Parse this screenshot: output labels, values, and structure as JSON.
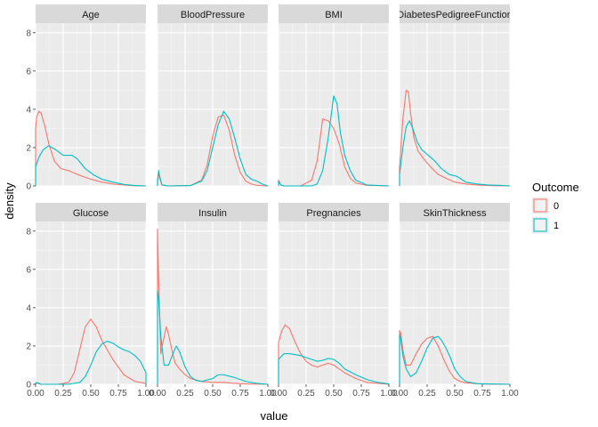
{
  "chart_data": {
    "type": "line",
    "subtype": "density-facets",
    "title": "",
    "xlabel": "value",
    "ylabel": "density",
    "xlim": [
      0,
      1
    ],
    "ylim": [
      0,
      8.5
    ],
    "x_ticks": [
      0,
      0.25,
      0.5,
      0.75,
      1
    ],
    "x_tick_labels": [
      "0.00",
      "0.25",
      "0.50",
      "0.75",
      "1.00"
    ],
    "y_ticks": [
      0,
      2,
      4,
      6,
      8
    ],
    "y_tick_labels": [
      "0",
      "2",
      "4",
      "6",
      "8"
    ],
    "grid": true,
    "legend": {
      "title": "Outcome",
      "placement": "right",
      "entries": [
        {
          "label": "0",
          "color": "#F8766D"
        },
        {
          "label": "1",
          "color": "#00BFC4"
        }
      ]
    },
    "facets": [
      {
        "name": "Age",
        "series": [
          {
            "name": "0",
            "x": [
              0,
              0.01,
              0.03,
              0.05,
              0.08,
              0.12,
              0.17,
              0.23,
              0.3,
              0.4,
              0.5,
              0.6,
              0.7,
              0.8,
              0.9,
              1
            ],
            "y": [
              3.0,
              3.6,
              3.9,
              3.8,
              3.2,
              2.2,
              1.3,
              0.9,
              0.8,
              0.55,
              0.35,
              0.2,
              0.1,
              0.05,
              0.01,
              0
            ]
          },
          {
            "name": "1",
            "x": [
              0,
              0.03,
              0.07,
              0.12,
              0.18,
              0.25,
              0.33,
              0.38,
              0.45,
              0.52,
              0.6,
              0.7,
              0.8,
              0.9,
              1
            ],
            "y": [
              1.0,
              1.5,
              1.9,
              2.1,
              1.9,
              1.6,
              1.6,
              1.4,
              0.9,
              0.6,
              0.35,
              0.2,
              0.08,
              0.02,
              0
            ]
          }
        ]
      },
      {
        "name": "BloodPressure",
        "series": [
          {
            "name": "0",
            "x": [
              0,
              0.01,
              0.02,
              0.04,
              0.1,
              0.3,
              0.4,
              0.45,
              0.5,
              0.55,
              0.6,
              0.65,
              0.7,
              0.75,
              0.8,
              0.85,
              0.9,
              1
            ],
            "y": [
              0.2,
              0.7,
              0.4,
              0.05,
              0,
              0.02,
              0.3,
              1.1,
              2.6,
              3.6,
              3.7,
              2.9,
              1.6,
              0.7,
              0.25,
              0.1,
              0.03,
              0
            ]
          },
          {
            "name": "1",
            "x": [
              0,
              0.01,
              0.02,
              0.04,
              0.1,
              0.3,
              0.4,
              0.45,
              0.5,
              0.55,
              0.6,
              0.65,
              0.7,
              0.75,
              0.8,
              0.85,
              0.9,
              0.95,
              1
            ],
            "y": [
              0.3,
              0.8,
              0.5,
              0.05,
              0,
              0.02,
              0.25,
              0.8,
              2.0,
              3.2,
              3.9,
              3.5,
              2.5,
              1.4,
              0.6,
              0.35,
              0.25,
              0.1,
              0
            ]
          }
        ]
      },
      {
        "name": "BMI",
        "series": [
          {
            "name": "0",
            "x": [
              0,
              0.01,
              0.02,
              0.05,
              0.2,
              0.3,
              0.35,
              0.4,
              0.45,
              0.5,
              0.55,
              0.6,
              0.65,
              0.7,
              0.8,
              1
            ],
            "y": [
              0.3,
              0.2,
              0.05,
              0,
              0,
              0.3,
              1.3,
              3.5,
              3.4,
              3.0,
              2.2,
              1.0,
              0.4,
              0.15,
              0.03,
              0
            ]
          },
          {
            "name": "1",
            "x": [
              0,
              0.01,
              0.02,
              0.05,
              0.3,
              0.35,
              0.4,
              0.45,
              0.5,
              0.53,
              0.56,
              0.6,
              0.65,
              0.7,
              0.8,
              1
            ],
            "y": [
              0.25,
              0.15,
              0.05,
              0,
              0,
              0.1,
              0.8,
              2.5,
              4.7,
              4.3,
              2.8,
              1.6,
              0.8,
              0.3,
              0.05,
              0
            ]
          }
        ]
      },
      {
        "name": "DiabetesPedigreeFunction",
        "series": [
          {
            "name": "0",
            "x": [
              0,
              0.03,
              0.06,
              0.08,
              0.1,
              0.13,
              0.17,
              0.22,
              0.28,
              0.35,
              0.42,
              0.5,
              0.6,
              0.7,
              0.8,
              1
            ],
            "y": [
              1.0,
              3.5,
              5.0,
              4.9,
              3.8,
              2.5,
              1.8,
              1.4,
              1.0,
              0.6,
              0.4,
              0.2,
              0.1,
              0.05,
              0.02,
              0
            ]
          },
          {
            "name": "1",
            "x": [
              0,
              0.03,
              0.06,
              0.09,
              0.12,
              0.16,
              0.2,
              0.26,
              0.32,
              0.38,
              0.45,
              0.52,
              0.6,
              0.7,
              0.8,
              0.9,
              1
            ],
            "y": [
              0.6,
              2.0,
              3.1,
              3.4,
              3.0,
              2.3,
              1.9,
              1.6,
              1.3,
              0.9,
              0.6,
              0.5,
              0.2,
              0.1,
              0.05,
              0.03,
              0
            ]
          }
        ]
      },
      {
        "name": "Glucose",
        "series": [
          {
            "name": "0",
            "x": [
              0,
              0.02,
              0.05,
              0.2,
              0.3,
              0.35,
              0.4,
              0.45,
              0.5,
              0.55,
              0.6,
              0.65,
              0.7,
              0.75,
              0.8,
              0.9,
              1
            ],
            "y": [
              0.05,
              0.05,
              0,
              0,
              0.1,
              0.6,
              1.8,
              3.0,
              3.4,
              3.0,
              2.3,
              1.8,
              1.3,
              0.9,
              0.5,
              0.15,
              0.05
            ]
          },
          {
            "name": "1",
            "x": [
              0,
              0.02,
              0.05,
              0.3,
              0.4,
              0.45,
              0.5,
              0.55,
              0.6,
              0.65,
              0.7,
              0.75,
              0.8,
              0.85,
              0.9,
              0.95,
              1
            ],
            "y": [
              0.08,
              0.08,
              0,
              0,
              0.1,
              0.4,
              1.0,
              1.7,
              2.1,
              2.25,
              2.15,
              1.95,
              1.8,
              1.7,
              1.5,
              1.2,
              0.6
            ]
          }
        ]
      },
      {
        "name": "Insulin",
        "series": [
          {
            "name": "0",
            "x": [
              0,
              0.01,
              0.03,
              0.05,
              0.08,
              0.1,
              0.13,
              0.16,
              0.2,
              0.25,
              0.3,
              0.4,
              0.5,
              0.6,
              0.7,
              0.8,
              1
            ],
            "y": [
              8.1,
              5.5,
              1.6,
              2.2,
              3.0,
              2.6,
              1.8,
              1.1,
              0.8,
              0.5,
              0.3,
              0.15,
              0.1,
              0.1,
              0.05,
              0.02,
              0
            ]
          },
          {
            "name": "1",
            "x": [
              0,
              0.01,
              0.03,
              0.06,
              0.1,
              0.14,
              0.17,
              0.2,
              0.25,
              0.3,
              0.35,
              0.4,
              0.5,
              0.55,
              0.6,
              0.7,
              0.8,
              0.9,
              1
            ],
            "y": [
              4.9,
              4.5,
              2.5,
              1.0,
              1.0,
              1.6,
              2.0,
              1.7,
              0.9,
              0.4,
              0.2,
              0.15,
              0.3,
              0.5,
              0.5,
              0.35,
              0.15,
              0.05,
              0
            ]
          }
        ]
      },
      {
        "name": "Pregnancies",
        "series": [
          {
            "name": "0",
            "x": [
              0,
              0.03,
              0.06,
              0.1,
              0.15,
              0.2,
              0.25,
              0.3,
              0.35,
              0.4,
              0.45,
              0.5,
              0.55,
              0.6,
              0.7,
              0.8,
              0.9,
              1
            ],
            "y": [
              2.2,
              2.8,
              3.1,
              2.9,
              2.2,
              1.6,
              1.2,
              1.0,
              0.9,
              1.0,
              1.1,
              1.0,
              0.8,
              0.6,
              0.3,
              0.1,
              0.05,
              0
            ]
          },
          {
            "name": "1",
            "x": [
              0,
              0.05,
              0.1,
              0.2,
              0.3,
              0.35,
              0.4,
              0.45,
              0.5,
              0.55,
              0.6,
              0.7,
              0.8,
              0.9,
              1
            ],
            "y": [
              1.3,
              1.6,
              1.6,
              1.5,
              1.3,
              1.2,
              1.25,
              1.35,
              1.3,
              1.1,
              0.8,
              0.5,
              0.25,
              0.1,
              0.02
            ]
          }
        ]
      },
      {
        "name": "SkinThickness",
        "series": [
          {
            "name": "0",
            "x": [
              0,
              0.01,
              0.03,
              0.06,
              0.1,
              0.15,
              0.2,
              0.25,
              0.3,
              0.35,
              0.4,
              0.45,
              0.5,
              0.55,
              0.6,
              0.7,
              0.8,
              1
            ],
            "y": [
              2.8,
              2.7,
              1.8,
              1.0,
              1.0,
              1.6,
              2.1,
              2.4,
              2.5,
              2.0,
              1.3,
              0.7,
              0.3,
              0.15,
              0.08,
              0.03,
              0.01,
              0
            ]
          },
          {
            "name": "1",
            "x": [
              0,
              0.01,
              0.03,
              0.06,
              0.1,
              0.15,
              0.2,
              0.25,
              0.3,
              0.35,
              0.38,
              0.42,
              0.46,
              0.5,
              0.55,
              0.6,
              0.7,
              1
            ],
            "y": [
              2.6,
              2.4,
              1.5,
              0.8,
              0.4,
              0.6,
              1.2,
              1.9,
              2.4,
              2.5,
              2.3,
              1.9,
              1.4,
              0.8,
              0.4,
              0.15,
              0.03,
              0
            ]
          }
        ]
      }
    ]
  }
}
